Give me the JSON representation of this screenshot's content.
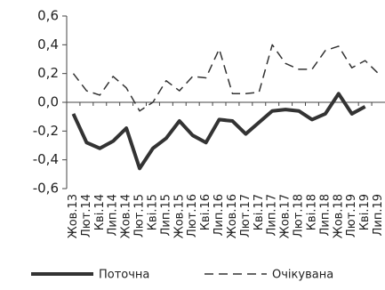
{
  "chart_data": {
    "type": "line",
    "categories": [
      "Жов.13",
      "Лют.14",
      "Кві.14",
      "Лип.14",
      "Жов.14",
      "Лют.15",
      "Кві.15",
      "Лип.15",
      "Жов.15",
      "Лют.16",
      "Кві.16",
      "Лип.16",
      "Жов.16",
      "Лют.17",
      "Кві.17",
      "Лип.17",
      "Жов.17",
      "Лют.18",
      "Кві.18",
      "Лип.18",
      "Жов.18",
      "Лют.19",
      "Кві.19",
      "Лип.19"
    ],
    "series": [
      {
        "name": "Поточна",
        "color": "#333333",
        "style": "solid",
        "values": [
          -0.08,
          -0.28,
          -0.32,
          -0.27,
          -0.18,
          -0.46,
          -0.32,
          -0.25,
          -0.13,
          -0.23,
          -0.28,
          -0.12,
          -0.13,
          -0.22,
          -0.14,
          -0.06,
          -0.05,
          -0.06,
          -0.12,
          -0.08,
          0.06,
          -0.08,
          -0.03,
          null
        ]
      },
      {
        "name": "Очікувана",
        "color": "#333333",
        "style": "dashed",
        "values": [
          0.2,
          0.08,
          0.05,
          0.18,
          0.1,
          -0.06,
          0.0,
          0.15,
          0.08,
          0.18,
          0.17,
          0.37,
          0.06,
          0.06,
          0.07,
          0.4,
          0.27,
          0.23,
          0.23,
          0.36,
          0.39,
          0.24,
          0.29,
          0.2
        ]
      }
    ],
    "ylim": [
      -0.6,
      0.6
    ],
    "yticks": [
      {
        "value": -0.6,
        "label": "-0,6"
      },
      {
        "value": -0.4,
        "label": "-0,4"
      },
      {
        "value": -0.2,
        "label": "-0,2"
      },
      {
        "value": 0,
        "label": "0,0"
      },
      {
        "value": 0.2,
        "label": "0,2"
      },
      {
        "value": 0.4,
        "label": "0,4"
      },
      {
        "value": 0.6,
        "label": "0,6"
      }
    ],
    "grid": false,
    "legend": "bottom"
  }
}
